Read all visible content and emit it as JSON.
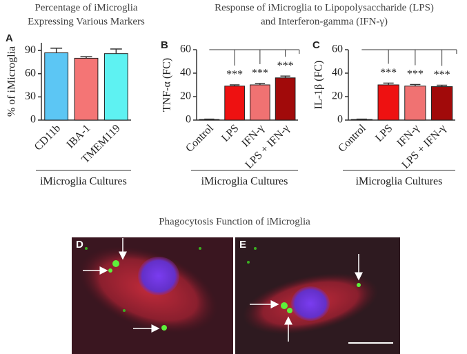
{
  "chart_data": [
    {
      "type": "bar",
      "panel": "A",
      "title": [
        "Percentage of iMicroglia",
        "Expressing Various Markers"
      ],
      "y_label": "% of iMicroglia",
      "group_label": "iMicroglia Cultures",
      "categories": [
        "CD11b",
        "IBA-1",
        "TMEM119"
      ],
      "values": [
        87,
        80,
        86
      ],
      "errors": [
        6,
        2,
        6
      ],
      "colors": [
        "#5cc6f4",
        "#f47575",
        "#5ef2f2"
      ],
      "ylim": [
        0,
        100
      ],
      "yticks": [
        0,
        30,
        60,
        90
      ]
    },
    {
      "type": "bar",
      "panel": "B",
      "y_label": "TNF-α (FC)",
      "group_label": "iMicroglia Cultures",
      "categories": [
        "Control",
        "LPS",
        "IFN-γ",
        "LPS + IFN-γ"
      ],
      "values": [
        0.5,
        29,
        30,
        36
      ],
      "errors": [
        0.3,
        1,
        1.2,
        1.5
      ],
      "colors": [
        "#7a1010",
        "#ee1111",
        "#f07272",
        "#a10a0a"
      ],
      "annotations": [
        "***",
        "***",
        "***"
      ],
      "ylim": [
        0,
        60
      ],
      "yticks": [
        0,
        20,
        40,
        60
      ]
    },
    {
      "type": "bar",
      "panel": "C",
      "y_label": "IL-1β (FC)",
      "group_label": "iMicroglia Cultures",
      "categories": [
        "Control",
        "LPS",
        "IFN-γ",
        "LPS + IFN-γ"
      ],
      "values": [
        0.5,
        30,
        29,
        28.5
      ],
      "errors": [
        0.3,
        1.5,
        1.3,
        1.2
      ],
      "colors": [
        "#7a1010",
        "#ee1111",
        "#f07272",
        "#a10a0a"
      ],
      "annotations": [
        "***",
        "***",
        "***"
      ],
      "ylim": [
        0,
        60
      ],
      "yticks": [
        0,
        20,
        40,
        60
      ]
    }
  ],
  "figure": {
    "bc_title": [
      "Response of iMicroglia to Lipopolysaccharide (LPS)",
      "and Interferon-gamma (IFN-γ)"
    ],
    "bottom_title": "Phagocytosis Function of iMicroglia",
    "image_panels": [
      "D",
      "E"
    ]
  }
}
